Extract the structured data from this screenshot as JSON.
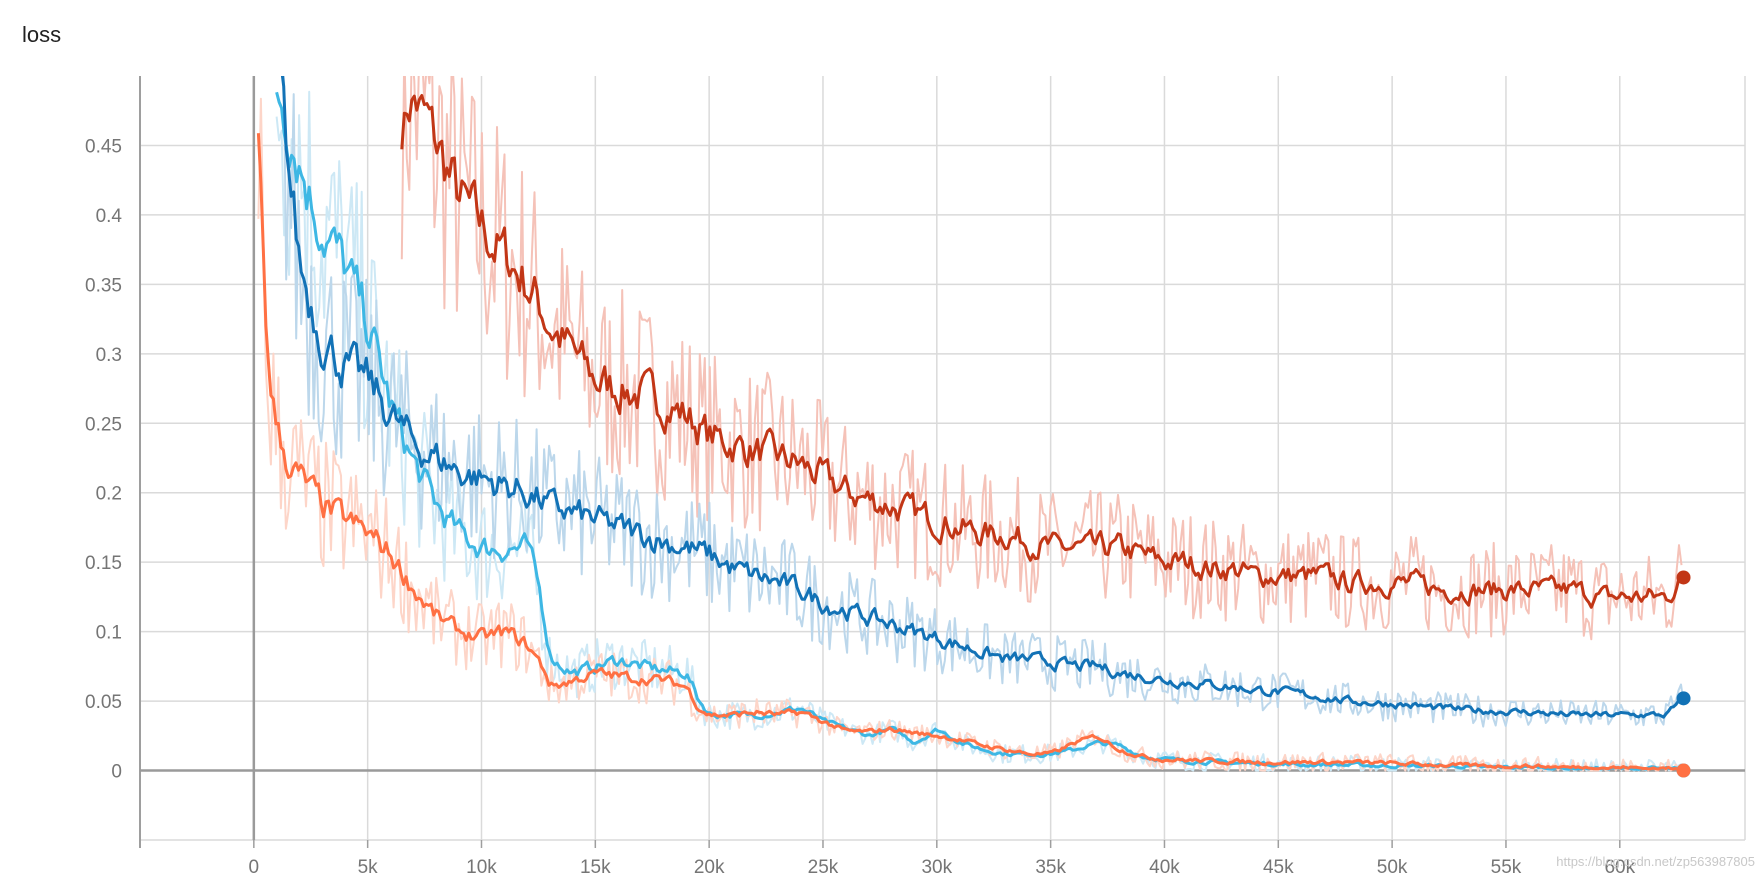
{
  "card": {
    "title": "loss"
  },
  "watermark": "https://blog.csdn.net/zp563987805",
  "chart_data": {
    "type": "line",
    "title": "loss",
    "xlabel": "",
    "ylabel": "",
    "xlim": [
      -5000,
      65500
    ],
    "ylim": [
      -0.05,
      0.5
    ],
    "grid": true,
    "legend": "none",
    "x_ticks": [
      0,
      5000,
      10000,
      15000,
      20000,
      25000,
      30000,
      35000,
      40000,
      45000,
      50000,
      55000,
      60000
    ],
    "x_tick_labels": [
      "0",
      "5k",
      "10k",
      "15k",
      "20k",
      "25k",
      "30k",
      "35k",
      "40k",
      "45k",
      "50k",
      "55k",
      "60k"
    ],
    "y_ticks": [
      0,
      0.05,
      0.1,
      0.15,
      0.2,
      0.25,
      0.3,
      0.35,
      0.4,
      0.45
    ],
    "y_tick_labels": [
      "0",
      "0.05",
      "0.1",
      "0.15",
      "0.2",
      "0.25",
      "0.3",
      "0.35",
      "0.4",
      "0.45"
    ],
    "series": [
      {
        "color": "#c23616",
        "raw_color": "#f5c2b8",
        "end": {
          "x": 62800,
          "y": 0.139
        },
        "x": [
          6500,
          7000,
          7500,
          8000,
          9000,
          10000,
          11000,
          12000,
          13000,
          14000,
          15000,
          16000,
          17000,
          18000,
          19000,
          20000,
          21000,
          22000,
          23000,
          24000,
          25000,
          26000,
          27000,
          28000,
          29000,
          30000,
          31000,
          32000,
          33000,
          34000,
          35000,
          36000,
          37000,
          38000,
          39000,
          40000,
          41000,
          42000,
          43000,
          44000,
          45000,
          46000,
          47000,
          48000,
          49000,
          50000,
          51000,
          52000,
          53000,
          54000,
          55000,
          56000,
          57000,
          58000,
          59000,
          60000,
          61000,
          62000,
          62800
        ],
        "y": [
          0.5,
          0.49,
          0.47,
          0.45,
          0.41,
          0.39,
          0.37,
          0.35,
          0.32,
          0.3,
          0.28,
          0.275,
          0.27,
          0.265,
          0.255,
          0.24,
          0.235,
          0.23,
          0.225,
          0.22,
          0.21,
          0.2,
          0.195,
          0.19,
          0.185,
          0.18,
          0.175,
          0.17,
          0.17,
          0.165,
          0.16,
          0.16,
          0.16,
          0.16,
          0.155,
          0.15,
          0.15,
          0.145,
          0.145,
          0.14,
          0.14,
          0.14,
          0.14,
          0.135,
          0.135,
          0.135,
          0.135,
          0.13,
          0.13,
          0.13,
          0.13,
          0.13,
          0.13,
          0.13,
          0.125,
          0.125,
          0.125,
          0.125,
          0.139
        ]
      },
      {
        "color": "#3db7e4",
        "raw_color": "#cde8f5",
        "end": {
          "x": 62800,
          "y": 0.0
        },
        "x": [
          1000,
          1500,
          2000,
          2500,
          3000,
          4000,
          5000,
          6000,
          7000,
          8000,
          9000,
          10000,
          11000,
          12000,
          12500,
          13000,
          14000,
          15000,
          16000,
          17000,
          18000,
          19000,
          19500,
          20000,
          21000,
          22000,
          23000,
          24000,
          25000,
          26000,
          27000,
          28000,
          29000,
          30000,
          31000,
          32000,
          33000,
          34000,
          35000,
          36000,
          37000,
          38000,
          39000,
          40000,
          42000,
          44000,
          46000,
          48000,
          50000,
          52000,
          54000,
          56000,
          58000,
          60000,
          62000,
          62800
        ],
        "y": [
          0.5,
          0.47,
          0.44,
          0.41,
          0.39,
          0.36,
          0.32,
          0.26,
          0.22,
          0.19,
          0.17,
          0.16,
          0.16,
          0.16,
          0.13,
          0.08,
          0.07,
          0.075,
          0.08,
          0.075,
          0.072,
          0.07,
          0.05,
          0.04,
          0.04,
          0.04,
          0.042,
          0.045,
          0.035,
          0.03,
          0.025,
          0.03,
          0.02,
          0.03,
          0.02,
          0.015,
          0.012,
          0.012,
          0.012,
          0.015,
          0.02,
          0.018,
          0.01,
          0.008,
          0.006,
          0.005,
          0.004,
          0.004,
          0.003,
          0.003,
          0.002,
          0.002,
          0.001,
          0.001,
          0.001,
          0.0
        ]
      },
      {
        "color": "#1272b6",
        "raw_color": "#bcd7eb",
        "end": {
          "x": 62800,
          "y": 0.052
        },
        "x": [
          1200,
          1500,
          2000,
          3000,
          4000,
          5000,
          6000,
          7000,
          8000,
          9000,
          10000,
          11000,
          12000,
          13000,
          14000,
          15000,
          16000,
          17000,
          18000,
          19000,
          20000,
          21000,
          22000,
          23000,
          24000,
          25000,
          26000,
          27000,
          28000,
          29000,
          30000,
          31000,
          32000,
          33000,
          34000,
          35000,
          36000,
          37000,
          38000,
          39000,
          40000,
          42000,
          44000,
          46000,
          48000,
          50000,
          52000,
          54000,
          56000,
          58000,
          60000,
          62000,
          62800
        ],
        "y": [
          0.5,
          0.43,
          0.36,
          0.31,
          0.29,
          0.28,
          0.255,
          0.235,
          0.225,
          0.215,
          0.21,
          0.205,
          0.2,
          0.19,
          0.185,
          0.18,
          0.175,
          0.17,
          0.165,
          0.16,
          0.155,
          0.145,
          0.14,
          0.135,
          0.13,
          0.12,
          0.115,
          0.11,
          0.105,
          0.1,
          0.095,
          0.09,
          0.085,
          0.08,
          0.08,
          0.078,
          0.075,
          0.075,
          0.07,
          0.068,
          0.065,
          0.062,
          0.058,
          0.055,
          0.05,
          0.048,
          0.045,
          0.043,
          0.042,
          0.04,
          0.04,
          0.04,
          0.052
        ]
      },
      {
        "color": "#ff7043",
        "raw_color": "#fdd5c8",
        "end": {
          "x": 62800,
          "y": 0.0
        },
        "x": [
          200,
          300,
          500,
          1000,
          1500,
          2000,
          3000,
          4000,
          5000,
          6000,
          7000,
          8000,
          9000,
          10000,
          11000,
          12000,
          12800,
          13000,
          14000,
          15000,
          16000,
          17000,
          18000,
          19000,
          19500,
          20000,
          21000,
          22000,
          23000,
          24000,
          25000,
          26000,
          27000,
          28000,
          29000,
          30000,
          31000,
          32000,
          33000,
          34000,
          35000,
          36000,
          37000,
          38000,
          39000,
          40000,
          42000,
          44000,
          46000,
          48000,
          50000,
          52000,
          54000,
          56000,
          58000,
          60000,
          62000,
          62800
        ],
        "y": [
          0.5,
          0.42,
          0.3,
          0.24,
          0.22,
          0.21,
          0.19,
          0.18,
          0.17,
          0.155,
          0.13,
          0.11,
          0.1,
          0.095,
          0.1,
          0.09,
          0.07,
          0.06,
          0.065,
          0.07,
          0.068,
          0.066,
          0.065,
          0.06,
          0.045,
          0.04,
          0.04,
          0.042,
          0.04,
          0.042,
          0.035,
          0.028,
          0.028,
          0.03,
          0.027,
          0.025,
          0.022,
          0.018,
          0.015,
          0.012,
          0.012,
          0.02,
          0.025,
          0.015,
          0.01,
          0.008,
          0.007,
          0.006,
          0.006,
          0.006,
          0.005,
          0.004,
          0.003,
          0.003,
          0.002,
          0.002,
          0.001,
          0.0
        ]
      }
    ]
  }
}
